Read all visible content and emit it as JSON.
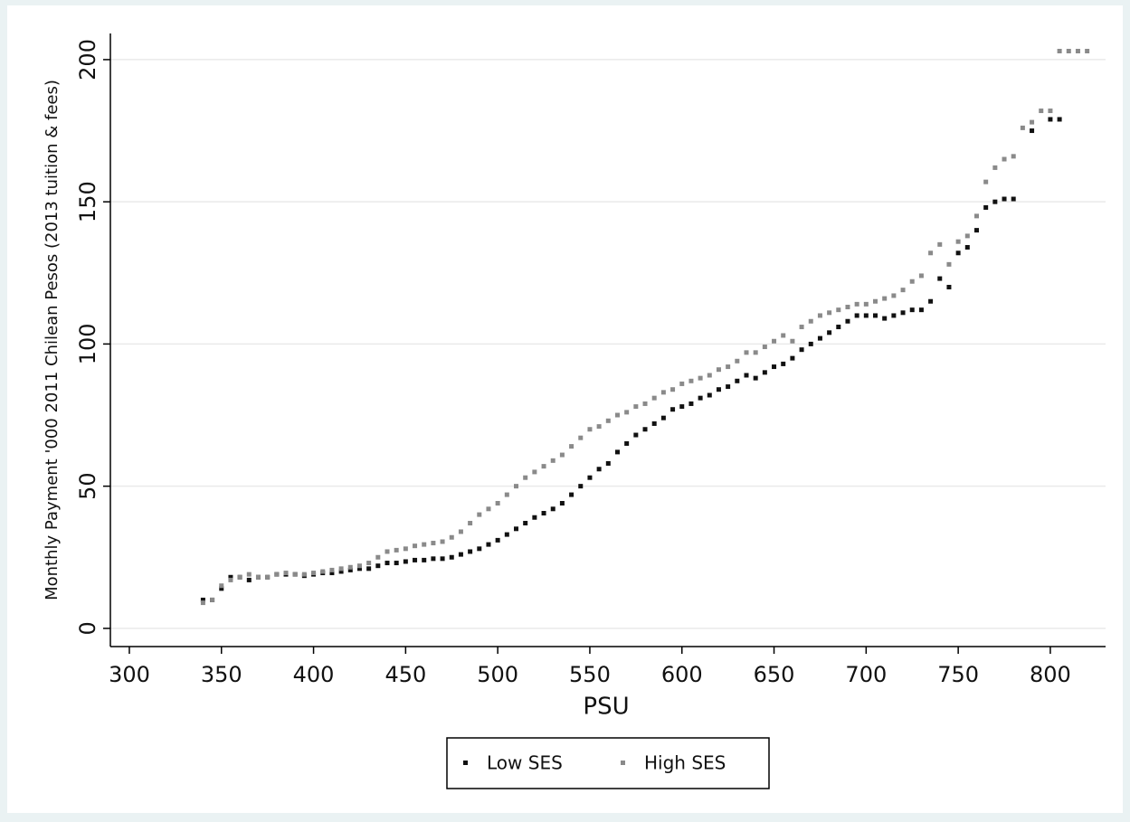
{
  "chart_data": {
    "type": "scatter",
    "xlabel": "PSU",
    "ylabel": "Monthly Payment '000 2011 Chilean Pesos (2013 tuition & fees)",
    "xlim": [
      289.7,
      830
    ],
    "ylim": [
      -6.4,
      209.2
    ],
    "xticks": [
      300,
      350,
      400,
      450,
      500,
      550,
      600,
      650,
      700,
      750,
      800
    ],
    "yticks": [
      0,
      50,
      100,
      150,
      200
    ],
    "grid": true,
    "legend": "bottom",
    "series": [
      {
        "name": "Low SES",
        "color": "#111111",
        "x": [
          340,
          345,
          350,
          355,
          360,
          365,
          370,
          375,
          380,
          385,
          390,
          395,
          400,
          405,
          410,
          415,
          420,
          425,
          430,
          435,
          440,
          445,
          450,
          455,
          460,
          465,
          470,
          475,
          480,
          485,
          490,
          495,
          500,
          505,
          510,
          515,
          520,
          525,
          530,
          535,
          540,
          545,
          550,
          555,
          560,
          565,
          570,
          575,
          580,
          585,
          590,
          595,
          600,
          605,
          610,
          615,
          620,
          625,
          630,
          635,
          640,
          645,
          650,
          655,
          660,
          665,
          670,
          675,
          680,
          685,
          690,
          695,
          700,
          705,
          710,
          715,
          720,
          725,
          730,
          735,
          740,
          745,
          750,
          755,
          760,
          765,
          770,
          775,
          780,
          790,
          800,
          805
        ],
        "values": [
          10,
          10,
          14,
          18,
          18,
          17,
          18,
          18,
          19,
          19,
          19,
          18.5,
          19,
          19.5,
          19.5,
          20,
          20.5,
          21,
          21,
          22,
          23,
          23,
          23.5,
          24,
          24,
          24.5,
          24.5,
          25,
          26,
          27,
          28,
          29.5,
          31,
          33,
          35,
          37,
          39,
          40.5,
          42,
          44,
          47,
          50,
          53,
          56,
          58,
          62,
          65,
          68,
          70,
          72,
          74,
          77,
          78,
          79,
          81,
          82,
          84,
          85,
          87,
          89,
          88,
          90,
          92,
          93,
          95,
          98,
          100,
          102,
          104,
          106,
          108,
          110,
          110,
          110,
          109,
          110,
          111,
          112,
          112,
          115,
          123,
          120,
          132,
          134,
          140,
          148,
          150,
          151,
          151,
          175,
          179,
          179
        ]
      },
      {
        "name": "High SES",
        "color": "#8a8a8a",
        "x": [
          340,
          345,
          350,
          355,
          360,
          365,
          370,
          375,
          380,
          385,
          390,
          395,
          400,
          405,
          410,
          415,
          420,
          425,
          430,
          435,
          440,
          445,
          450,
          455,
          460,
          465,
          470,
          475,
          480,
          485,
          490,
          495,
          500,
          505,
          510,
          515,
          520,
          525,
          530,
          535,
          540,
          545,
          550,
          555,
          560,
          565,
          570,
          575,
          580,
          585,
          590,
          595,
          600,
          605,
          610,
          615,
          620,
          625,
          630,
          635,
          640,
          645,
          650,
          655,
          660,
          665,
          670,
          675,
          680,
          685,
          690,
          695,
          700,
          705,
          710,
          715,
          720,
          725,
          730,
          735,
          740,
          745,
          750,
          755,
          760,
          765,
          770,
          775,
          780,
          785,
          790,
          795,
          800,
          805,
          810,
          815,
          820
        ],
        "values": [
          9,
          10,
          15,
          17,
          18,
          19,
          18,
          18,
          19,
          19.5,
          19,
          19,
          19.5,
          20,
          20.5,
          21,
          21.5,
          22,
          23,
          25,
          27,
          27.5,
          28,
          29,
          29.5,
          30,
          30.5,
          32,
          34,
          37,
          40,
          42,
          44,
          47,
          50,
          53,
          55,
          57,
          59,
          61,
          64,
          67,
          70,
          71,
          73,
          75,
          76,
          78,
          79,
          81,
          83,
          84,
          86,
          87,
          88,
          89,
          91,
          92,
          94,
          97,
          97,
          99,
          101,
          103,
          101,
          106,
          108,
          110,
          111,
          112,
          113,
          114,
          114,
          115,
          116,
          117,
          119,
          122,
          124,
          132,
          135,
          128,
          136,
          138,
          145,
          157,
          162,
          165,
          166,
          176,
          178,
          182,
          182,
          203,
          203,
          203,
          203
        ]
      }
    ]
  }
}
